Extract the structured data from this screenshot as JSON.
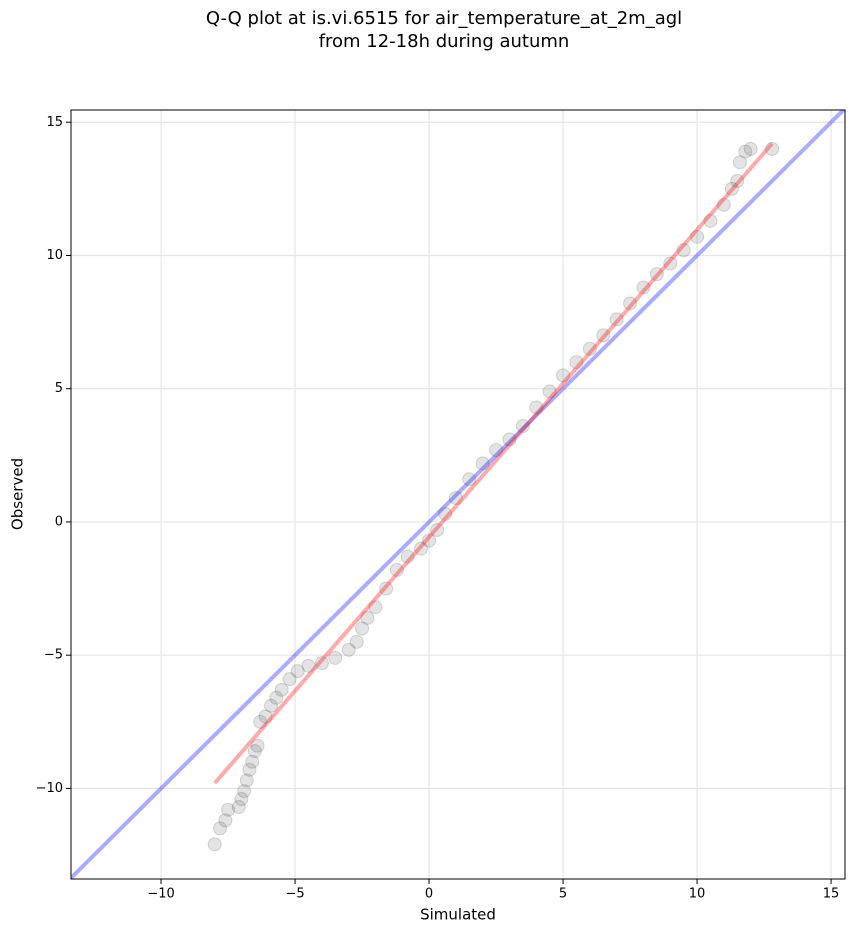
{
  "chart_data": {
    "type": "scatter",
    "title": [
      "Q-Q plot at is.vi.6515 for air_temperature_at_2m_agl",
      "from 12-18h during autumn"
    ],
    "x_label": "Simulated",
    "y_label": "Observed",
    "color": "#404040",
    "x": [
      -8,
      -7.8,
      -7.6,
      -7.5,
      -7.1,
      -7,
      -6.9,
      -6.8,
      -6.7,
      -6.6,
      -6.5,
      -6.4,
      -6.3,
      -6.1,
      -5.9,
      -5.7,
      -5.5,
      -5.2,
      -4.9,
      -4.5,
      -4,
      -3.5,
      -3,
      -2.7,
      -2.5,
      -2.3,
      -2,
      -1.6,
      -1.2,
      -0.8,
      -0.3,
      0,
      0.3,
      0.6,
      1,
      1.5,
      2,
      2.5,
      3,
      3.5,
      4,
      4.5,
      5,
      5.5,
      6,
      6.5,
      7,
      7.5,
      8,
      8.5,
      9,
      9.5,
      10,
      10.5,
      11,
      11.3,
      11.5,
      11.6,
      11.8,
      12,
      12.8
    ],
    "y": [
      -12.1,
      -11.5,
      -11.2,
      -10.8,
      -10.7,
      -10.4,
      -10.1,
      -9.7,
      -9.3,
      -9,
      -8.6,
      -8.4,
      -7.5,
      -7.3,
      -6.9,
      -6.6,
      -6.3,
      -5.9,
      -5.6,
      -5.4,
      -5.3,
      -5.1,
      -4.8,
      -4.5,
      -4,
      -3.6,
      -3.2,
      -2.5,
      -1.8,
      -1.3,
      -1,
      -0.7,
      -0.3,
      0.3,
      0.9,
      1.6,
      2.2,
      2.7,
      3.1,
      3.6,
      4.3,
      4.9,
      5.5,
      6,
      6.5,
      7,
      7.6,
      8.2,
      8.8,
      9.3,
      9.7,
      10.2,
      10.7,
      11.3,
      11.9,
      12.5,
      12.8,
      13.5,
      13.9,
      14,
      14
    ],
    "lines": [
      {
        "color": "#0000ff",
        "x": [
          -13.4,
          15.5
        ],
        "y": [
          -13.4,
          15.5
        ]
      },
      {
        "color": "#ff0000",
        "x": [
          -8,
          12.8
        ],
        "y": [
          -9.8,
          14.2
        ]
      }
    ],
    "xlim": [
      -13.36,
      15.52
    ],
    "ylim": [
      -13.4,
      15.46
    ],
    "xticks": [
      {
        "value": -10,
        "label": "−10"
      },
      {
        "value": -5,
        "label": "−5"
      },
      0,
      5,
      10,
      15
    ],
    "yticks": [
      {
        "value": -10,
        "label": "−10"
      },
      {
        "value": -5,
        "label": "−5"
      },
      0,
      5,
      10,
      15
    ],
    "grid": true
  }
}
